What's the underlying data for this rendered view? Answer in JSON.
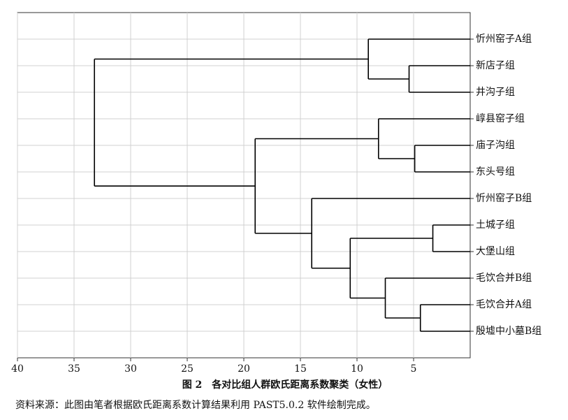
{
  "chart_data": {
    "type": "dendrogram",
    "title": "图 2　各对比组人群欧氏距离系数聚类（女性）",
    "note": "资料来源：此图由笔者根据欧氏距离系数计算结果利用 PAST5.0.2 软件绘制完成。",
    "xlim": [
      40,
      0
    ],
    "xticks": [
      40,
      35,
      30,
      25,
      20,
      15,
      10,
      5
    ],
    "grid": true,
    "color": "#000000",
    "tree": {
      "height": 33.2,
      "children": [
        {
          "height": 9.0,
          "children": [
            {
              "label": "忻州窑子A组"
            },
            {
              "height": 5.4,
              "children": [
                {
                  "label": "新店子组"
                },
                {
                  "label": "井沟子组"
                }
              ]
            }
          ]
        },
        {
          "height": 19.0,
          "children": [
            {
              "height": 8.1,
              "children": [
                {
                  "label": "崞县窑子组"
                },
                {
                  "height": 4.9,
                  "children": [
                    {
                      "label": "庙子沟组"
                    },
                    {
                      "label": "东头号组"
                    }
                  ]
                }
              ]
            },
            {
              "height": 14.0,
              "children": [
                {
                  "label": "忻州窑子B组"
                },
                {
                  "height": 10.6,
                  "children": [
                    {
                      "height": 3.3,
                      "children": [
                        {
                          "label": "土城子组"
                        },
                        {
                          "label": "大堡山组"
                        }
                      ]
                    },
                    {
                      "height": 7.5,
                      "children": [
                        {
                          "label": "毛饮合并B组"
                        },
                        {
                          "height": 4.4,
                          "children": [
                            {
                              "label": "毛饮合并A组"
                            },
                            {
                              "label": "殷墟中小墓B组"
                            }
                          ]
                        }
                      ]
                    }
                  ]
                }
              ]
            }
          ]
        }
      ]
    }
  }
}
